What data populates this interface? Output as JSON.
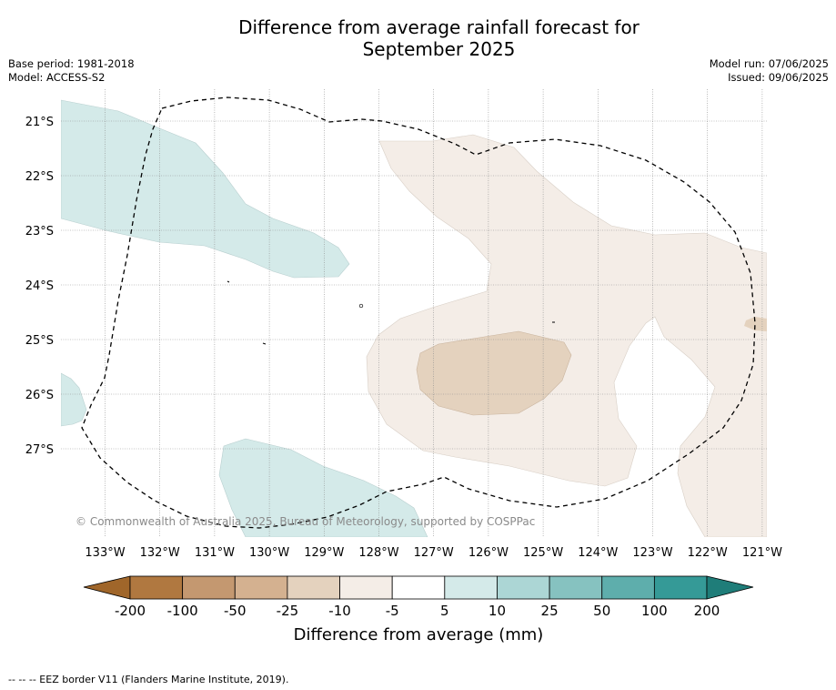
{
  "title_line1": "Difference from average rainfall forecast for",
  "title_line2": "September 2025",
  "meta_left": {
    "base_period": "Base period: 1981-2018",
    "model": "Model: ACCESS-S2"
  },
  "meta_right": {
    "model_run": "Model run: 07/06/2025",
    "issued": "Issued: 09/06/2025"
  },
  "lat_labels": [
    "21°S",
    "22°S",
    "23°S",
    "24°S",
    "25°S",
    "26°S",
    "27°S"
  ],
  "lon_labels": [
    "133°W",
    "132°W",
    "131°W",
    "130°W",
    "129°W",
    "128°W",
    "127°W",
    "126°W",
    "125°W",
    "124°W",
    "123°W",
    "122°W",
    "121°W"
  ],
  "copyright": "© Commonwealth of Australia 2025, Bureau of Meteorology, supported by COSPPac",
  "colorbar": {
    "tick_labels": [
      "-200",
      "-100",
      "-50",
      "-25",
      "-10",
      "-5",
      "5",
      "10",
      "25",
      "50",
      "100",
      "200"
    ],
    "colors": [
      "#a0662a",
      "#b07840",
      "#c49870",
      "#d4b190",
      "#e4d2be",
      "#f4ede7",
      "#ffffff",
      "#d4eae9",
      "#acd6d5",
      "#86c2c0",
      "#5eaeac",
      "#359a97",
      "#1f7d79"
    ],
    "label": "Difference from average (mm)"
  },
  "footnote": "--  --  -- EEZ border V11 (Flanders Marine Institute, 2019).",
  "map_colors": {
    "light_blue": "#d4eae9",
    "light_tan": "#f4ede7",
    "tan": "#e4d2be"
  }
}
